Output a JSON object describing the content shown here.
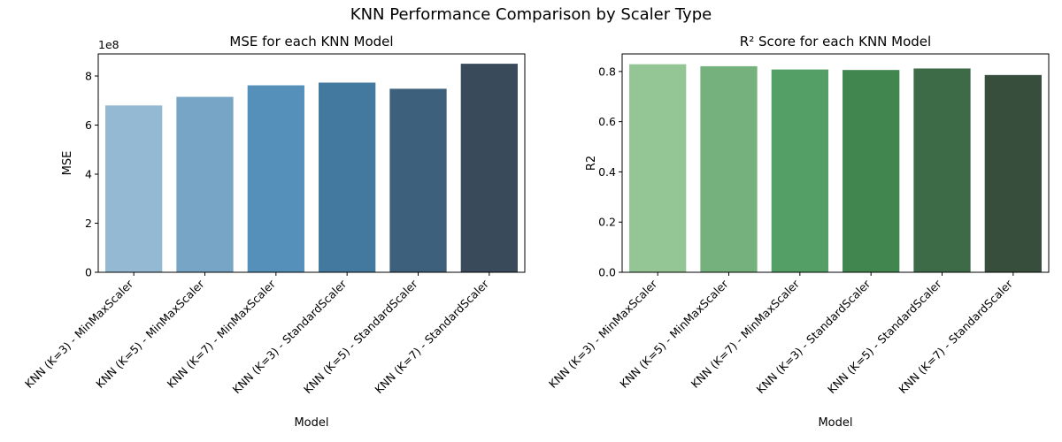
{
  "figure": {
    "title": "KNN Performance Comparison by Scaler Type"
  },
  "chart_data": [
    {
      "type": "bar",
      "title": "MSE for each KNN Model",
      "xlabel": "Model",
      "ylabel": "MSE",
      "offset_label": "1e8",
      "categories": [
        "KNN (K=3) - MinMaxScaler",
        "KNN (K=5) - MinMaxScaler",
        "KNN (K=7) - MinMaxScaler",
        "KNN (K=3) - StandardScaler",
        "KNN (K=5) - StandardScaler",
        "KNN (K=7) - StandardScaler"
      ],
      "values": [
        6.8,
        7.15,
        7.62,
        7.73,
        7.48,
        8.5
      ],
      "ylim": [
        0,
        8.9
      ],
      "yticks": [
        0,
        2,
        4,
        6,
        8
      ],
      "colors": [
        "#94b9d2",
        "#76a5c5",
        "#5590bb",
        "#43799f",
        "#3d607c",
        "#394a5a"
      ],
      "grid": false
    },
    {
      "type": "bar",
      "title": "R² Score for each KNN Model",
      "xlabel": "Model",
      "ylabel": "R2",
      "categories": [
        "KNN (K=3) - MinMaxScaler",
        "KNN (K=5) - MinMaxScaler",
        "KNN (K=7) - MinMaxScaler",
        "KNN (K=3) - StandardScaler",
        "KNN (K=5) - StandardScaler",
        "KNN (K=7) - StandardScaler"
      ],
      "values": [
        0.829,
        0.821,
        0.808,
        0.806,
        0.812,
        0.786
      ],
      "ylim": [
        0,
        0.87
      ],
      "yticks": [
        "0.0",
        "0.2",
        "0.4",
        "0.6",
        "0.8"
      ],
      "colors": [
        "#94c594",
        "#75b17d",
        "#549f66",
        "#41864f",
        "#3d6b48",
        "#374e3d"
      ],
      "grid": false
    }
  ]
}
